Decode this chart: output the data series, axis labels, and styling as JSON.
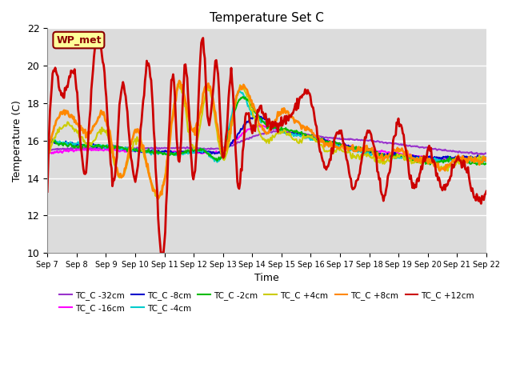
{
  "title": "Temperature Set C",
  "xlabel": "Time",
  "ylabel": "Temperature (C)",
  "ylim": [
    10,
    22
  ],
  "xtick_labels": [
    "Sep 7",
    "Sep 8",
    "Sep 9",
    "Sep 10",
    "Sep 11",
    "Sep 12",
    "Sep 13",
    "Sep 14",
    "Sep 15",
    "Sep 16",
    "Sep 17",
    "Sep 18",
    "Sep 19",
    "Sep 20",
    "Sep 21",
    "Sep 22"
  ],
  "annotation": "WP_met",
  "annotation_bg": "#ffff99",
  "annotation_border": "#8b0000",
  "bg_color": "#dcdcdc",
  "grid_color": "#ffffff",
  "series_colors": {
    "TC_C -32cm": "#9933cc",
    "TC_C -16cm": "#ff00ff",
    "TC_C -8cm": "#0000cc",
    "TC_C -4cm": "#00cccc",
    "TC_C -2cm": "#00bb00",
    "TC_C +4cm": "#cccc00",
    "TC_C +8cm": "#ff8800",
    "TC_C +12cm": "#cc0000"
  },
  "legend_order": [
    "TC_C -32cm",
    "TC_C -16cm",
    "TC_C -8cm",
    "TC_C -4cm",
    "TC_C -2cm",
    "TC_C +4cm",
    "TC_C +8cm",
    "TC_C +12cm"
  ]
}
